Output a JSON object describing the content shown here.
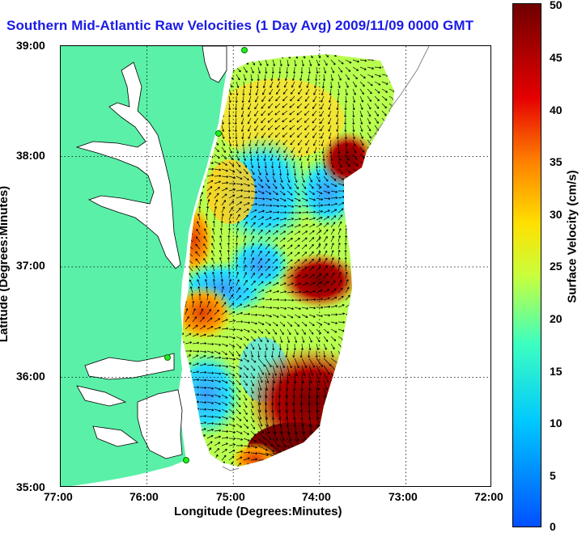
{
  "title": "Southern Mid-Atlantic Raw Velocities (1 Day Avg) 2009/11/09 0000 GMT",
  "x_axis": {
    "label": "Longitude (Degrees:Minutes)",
    "ticks": [
      "77:00",
      "76:00",
      "75:00",
      "74:00",
      "73:00",
      "72:00"
    ]
  },
  "y_axis": {
    "label": "Latitude (Degrees:Minutes)",
    "ticks": [
      "39:00",
      "38:00",
      "37:00",
      "36:00",
      "35:00"
    ]
  },
  "colorbar": {
    "label": "Surface Velocity (cm/s)",
    "ticks": [
      "50",
      "45",
      "40",
      "35",
      "30",
      "25",
      "20",
      "15",
      "10",
      "5",
      "0"
    ],
    "colors": [
      "#0050ff",
      "#00c8ff",
      "#3cffc0",
      "#c8ff3c",
      "#ffe000",
      "#ff8000",
      "#e60000",
      "#700000"
    ]
  },
  "map": {
    "land_color": "#5af0a8",
    "water_color": "#ffffff",
    "station_color": "#22ee22",
    "extent": {
      "lon": [
        -77,
        -72
      ],
      "lat": [
        35,
        39
      ]
    }
  }
}
